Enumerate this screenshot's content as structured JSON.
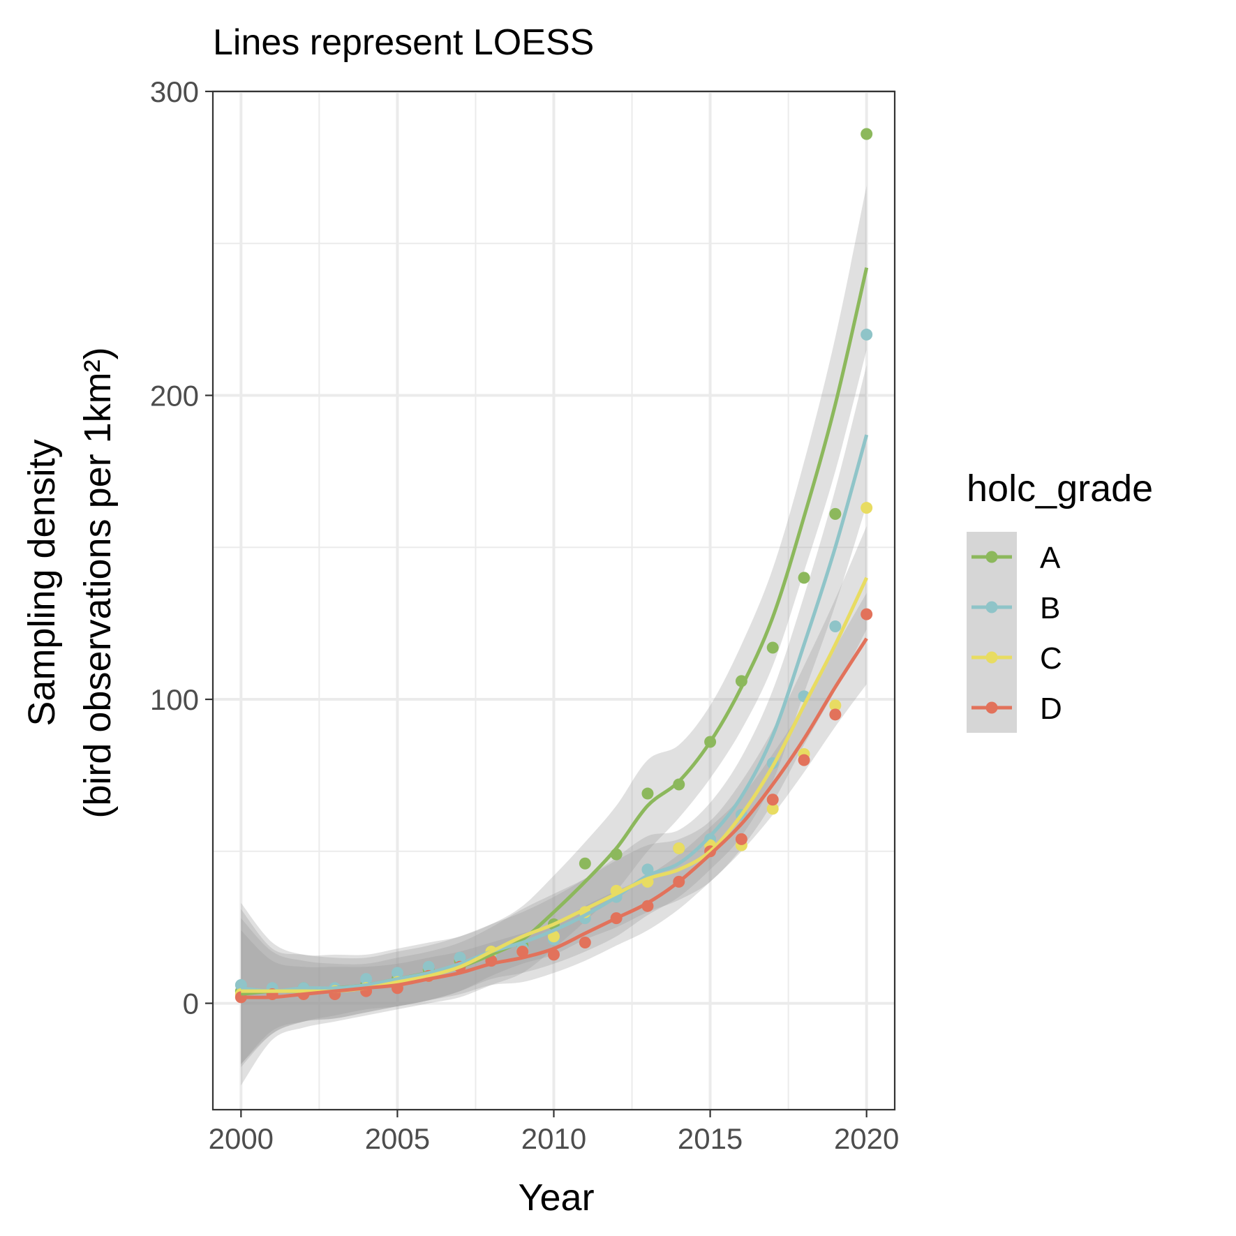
{
  "chart_data": {
    "type": "scatter",
    "title": "Lines represent LOESS",
    "xlabel": "Year",
    "ylabel_lines": [
      "Sampling density",
      "(bird observations per 1km²)"
    ],
    "xlim": [
      1999.1,
      2020.9
    ],
    "ylim": [
      -35,
      300
    ],
    "xticks": [
      2000,
      2005,
      2010,
      2015,
      2020
    ],
    "xtick_labels": [
      "2000",
      "2005",
      "2010",
      "2015",
      "2020"
    ],
    "yticks": [
      0,
      100,
      200,
      300
    ],
    "ytick_labels": [
      "0",
      "100",
      "200",
      "300"
    ],
    "grid": true,
    "legend": {
      "title": "holc_grade",
      "position": "right"
    },
    "series": [
      {
        "name": "A",
        "color": "#8cb85c",
        "x": [
          2000,
          2001,
          2002,
          2003,
          2004,
          2005,
          2006,
          2007,
          2008,
          2009,
          2010,
          2011,
          2012,
          2013,
          2014,
          2015,
          2016,
          2017,
          2018,
          2019,
          2020
        ],
        "y": [
          4,
          4,
          5,
          4,
          6,
          8,
          11,
          14,
          17,
          19,
          26,
          46,
          49,
          69,
          72,
          86,
          106,
          117,
          140,
          161,
          286
        ],
        "fit": [
          3,
          4,
          4,
          5,
          6,
          8,
          10,
          12,
          16,
          21,
          30,
          40,
          51,
          65,
          73,
          86,
          104,
          127,
          160,
          197,
          242
        ],
        "ci": [
          30,
          16,
          12,
          11,
          10,
          10,
          10,
          10,
          10,
          11,
          12,
          13,
          14,
          15,
          12,
          12,
          14,
          16,
          18,
          22,
          27
        ]
      },
      {
        "name": "B",
        "color": "#8fc4c8",
        "x": [
          2000,
          2001,
          2002,
          2003,
          2004,
          2005,
          2006,
          2007,
          2008,
          2009,
          2010,
          2011,
          2012,
          2013,
          2014,
          2015,
          2016,
          2017,
          2018,
          2019,
          2020
        ],
        "y": [
          6,
          5,
          5,
          5,
          8,
          10,
          12,
          15,
          16,
          18,
          21,
          28,
          35,
          44,
          51,
          54,
          62,
          79,
          101,
          124,
          220
        ],
        "fit": [
          5,
          4,
          5,
          5,
          6,
          8,
          10,
          13,
          17,
          20,
          24,
          29,
          35,
          42,
          46,
          55,
          68,
          88,
          118,
          150,
          187
        ],
        "ci": [
          26,
          14,
          11,
          10,
          9,
          9,
          9,
          9,
          9,
          10,
          11,
          12,
          13,
          13,
          11,
          11,
          13,
          15,
          16,
          19,
          23
        ]
      },
      {
        "name": "C",
        "color": "#e8dc62",
        "x": [
          2000,
          2001,
          2002,
          2003,
          2004,
          2005,
          2006,
          2007,
          2008,
          2009,
          2010,
          2011,
          2012,
          2013,
          2014,
          2015,
          2016,
          2017,
          2018,
          2019,
          2020
        ],
        "y": [
          3,
          3,
          3,
          4,
          5,
          7,
          9,
          12,
          17,
          17,
          22,
          30,
          37,
          40,
          51,
          52,
          52,
          64,
          82,
          98,
          163
        ],
        "fit": [
          4,
          4,
          4,
          4,
          5,
          7,
          9,
          12,
          17,
          22,
          26,
          31,
          36,
          41,
          44,
          50,
          62,
          78,
          98,
          118,
          140
        ],
        "ci": [
          24,
          13,
          10,
          9,
          8,
          8,
          8,
          8,
          8,
          9,
          10,
          10,
          11,
          11,
          10,
          10,
          11,
          12,
          13,
          15,
          17
        ]
      },
      {
        "name": "D",
        "color": "#e2725b",
        "x": [
          2000,
          2001,
          2002,
          2003,
          2004,
          2005,
          2006,
          2007,
          2008,
          2009,
          2010,
          2011,
          2012,
          2013,
          2014,
          2015,
          2016,
          2017,
          2018,
          2019,
          2020
        ],
        "y": [
          2,
          3,
          3,
          3,
          4,
          5,
          9,
          12,
          14,
          17,
          16,
          20,
          28,
          32,
          40,
          50,
          54,
          67,
          80,
          95,
          128
        ],
        "fit": [
          2,
          2,
          3,
          4,
          5,
          6,
          8,
          10,
          13,
          15,
          18,
          23,
          28,
          33,
          40,
          49,
          59,
          72,
          87,
          104,
          120
        ],
        "ci": [
          22,
          12,
          9,
          8,
          7,
          7,
          7,
          7,
          7,
          8,
          8,
          9,
          9,
          9,
          9,
          9,
          9,
          10,
          11,
          13,
          15
        ]
      }
    ]
  }
}
